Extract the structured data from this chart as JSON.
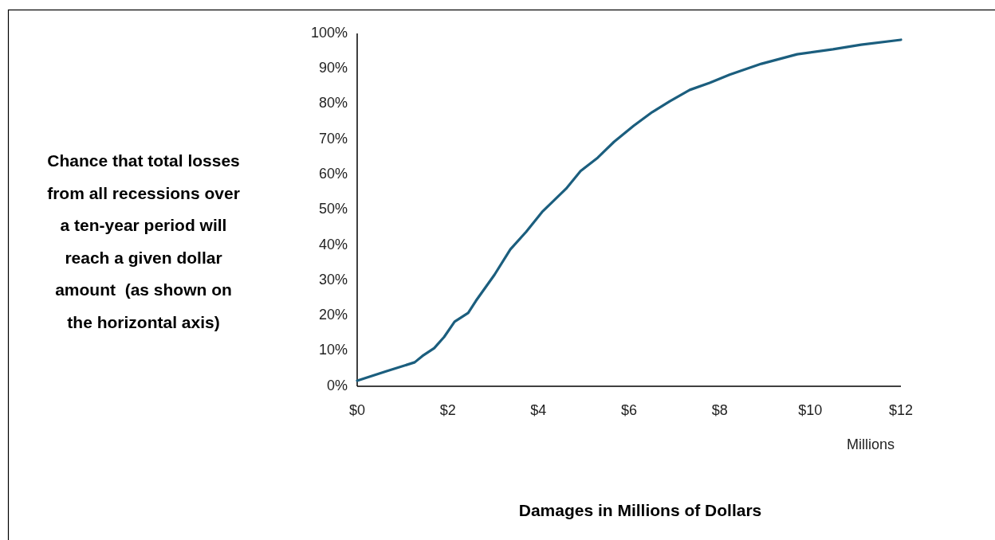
{
  "chart_data": {
    "type": "line",
    "ylabel": "Chance that total losses\nfrom all recessions over\na ten-year period will\nreach a given dollar\namount  (as shown on\nthe horizontal axis)",
    "xlabel": "Damages in Millions of Dollars",
    "annotations": [
      "Millions"
    ],
    "x": [
      0,
      0.65,
      1.27,
      1.44,
      1.7,
      1.92,
      2.15,
      2.45,
      2.62,
      3.03,
      3.38,
      3.73,
      4.08,
      4.61,
      4.93,
      5.31,
      5.67,
      6.1,
      6.51,
      6.9,
      7.34,
      7.78,
      8.22,
      8.92,
      9.71,
      10.5,
      11.12,
      12
    ],
    "series": [
      {
        "color": "#1b5e7e",
        "values": [
          1.6,
          4.3,
          6.8,
          8.6,
          10.8,
          14,
          18.3,
          20.8,
          24.2,
          31.6,
          38.8,
          43.8,
          49.4,
          56,
          61,
          64.8,
          69.3,
          73.8,
          77.7,
          80.8,
          84,
          86,
          88.3,
          91.4,
          94.1,
          95.5,
          96.8,
          98.2
        ]
      }
    ],
    "xlim": [
      0,
      12
    ],
    "xticks": [
      {
        "value": 0,
        "label": "$0"
      },
      {
        "value": 2,
        "label": "$2"
      },
      {
        "value": 4,
        "label": "$4"
      },
      {
        "value": 6,
        "label": "$6"
      },
      {
        "value": 8,
        "label": "$8"
      },
      {
        "value": 10,
        "label": "$10"
      },
      {
        "value": 12,
        "label": "$12"
      }
    ],
    "ylim": [
      0,
      100
    ],
    "yticks": [
      {
        "value": 0,
        "label": "0%"
      },
      {
        "value": 10,
        "label": "10%"
      },
      {
        "value": 20,
        "label": "20%"
      },
      {
        "value": 30,
        "label": "30%"
      },
      {
        "value": 40,
        "label": "40%"
      },
      {
        "value": 50,
        "label": "50%"
      },
      {
        "value": 60,
        "label": "60%"
      },
      {
        "value": 70,
        "label": "70%"
      },
      {
        "value": 80,
        "label": "80%"
      },
      {
        "value": 90,
        "label": "90%"
      },
      {
        "value": 100,
        "label": "100%"
      }
    ],
    "grid": false,
    "marker": "none",
    "line_style": "solid"
  }
}
